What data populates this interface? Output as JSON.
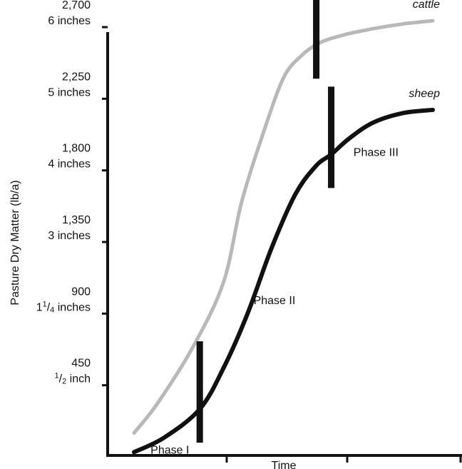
{
  "chart_data": {
    "type": "line",
    "xlabel": "Time",
    "ylabel": "Pasture Dry Matter (lb/a)",
    "ylim": [
      0,
      2700
    ],
    "yticks": [
      {
        "value": 450,
        "label": "450",
        "sublabel": "1/2 inch",
        "sub_sup": "1",
        "sub_sub": "2",
        "sub_rest": " inch",
        "sub_prefix": ""
      },
      {
        "value": 900,
        "label": "900",
        "sublabel": "1 1/4 inches",
        "sub_prefix": "1",
        "sub_sup": "1",
        "sub_sub": "4",
        "sub_rest": " inches"
      },
      {
        "value": 1350,
        "label": "1,350",
        "sublabel": "3 inches"
      },
      {
        "value": 1800,
        "label": "1,800",
        "sublabel": "4 inches"
      },
      {
        "value": 2250,
        "label": "2,250",
        "sublabel": "5 inches"
      },
      {
        "value": 2700,
        "label": "2,700",
        "sublabel": "6 inches"
      }
    ],
    "series": [
      {
        "name": "cattle",
        "color": "#b8b8b8",
        "x": [
          0.0,
          0.08,
          0.2,
          0.3,
          0.36,
          0.43,
          0.5,
          0.56,
          0.62,
          0.7,
          0.8,
          0.9,
          1.0
        ],
        "values": [
          150,
          340,
          700,
          1100,
          1600,
          2020,
          2380,
          2520,
          2600,
          2650,
          2690,
          2720,
          2740
        ]
      },
      {
        "name": "sheep",
        "color": "#111111",
        "x": [
          0.0,
          0.1,
          0.22,
          0.3,
          0.38,
          0.46,
          0.54,
          0.61,
          0.66,
          0.72,
          0.8,
          0.9,
          1.0
        ],
        "values": [
          30,
          120,
          300,
          560,
          900,
          1310,
          1650,
          1830,
          1900,
          2000,
          2100,
          2160,
          2180
        ]
      }
    ],
    "phase_markers": [
      {
        "series": "cattle",
        "x": 0.61
      },
      {
        "series": "sheep",
        "x": 0.22
      },
      {
        "series": "sheep",
        "x": 0.66
      }
    ],
    "annotations": [
      {
        "text": "Phase I",
        "x": 0.12,
        "y": 20
      },
      {
        "text": "Phase II",
        "x": 0.47,
        "y": 960
      },
      {
        "text": "Phase III",
        "x": 0.81,
        "y": 1890
      }
    ]
  }
}
